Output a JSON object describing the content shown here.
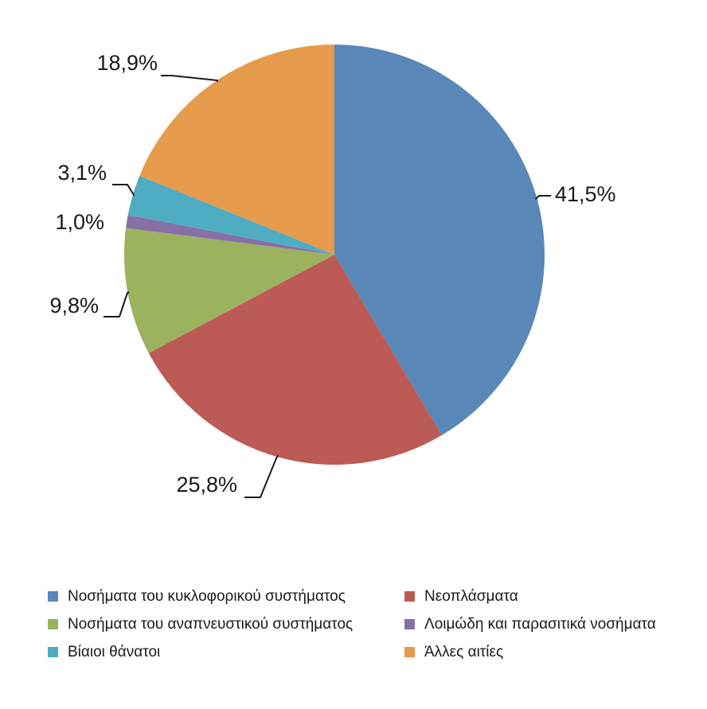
{
  "chart_data": {
    "type": "pie",
    "start_angle_deg": 0,
    "direction": "clockwise",
    "legend_position": "bottom",
    "slices": [
      {
        "name": "Νοσήματα του κυκλοφορικού συστήματος",
        "value": 41.5,
        "label": "41,5%",
        "color": "#5887b8"
      },
      {
        "name": "Νεοπλάσματα",
        "value": 25.8,
        "label": "25,8%",
        "color": "#bc5b55"
      },
      {
        "name": "Νοσήματα του αναπνευστικού συστήματος",
        "value": 9.8,
        "label": "9,8%",
        "color": "#9bb25f"
      },
      {
        "name": "Λοιμώδη και παρασιτικά νοσήματα",
        "value": 1.0,
        "label": "1,0%",
        "color": "#8670a5"
      },
      {
        "name": "Βίαιοι θάνατοι",
        "value": 3.1,
        "label": "3,1%",
        "color": "#4eadc3"
      },
      {
        "name": "Άλλες αιτίες",
        "value": 18.9,
        "label": "18,9%",
        "color": "#e59a4c"
      }
    ],
    "legend_order": [
      0,
      1,
      2,
      3,
      4,
      5
    ]
  }
}
